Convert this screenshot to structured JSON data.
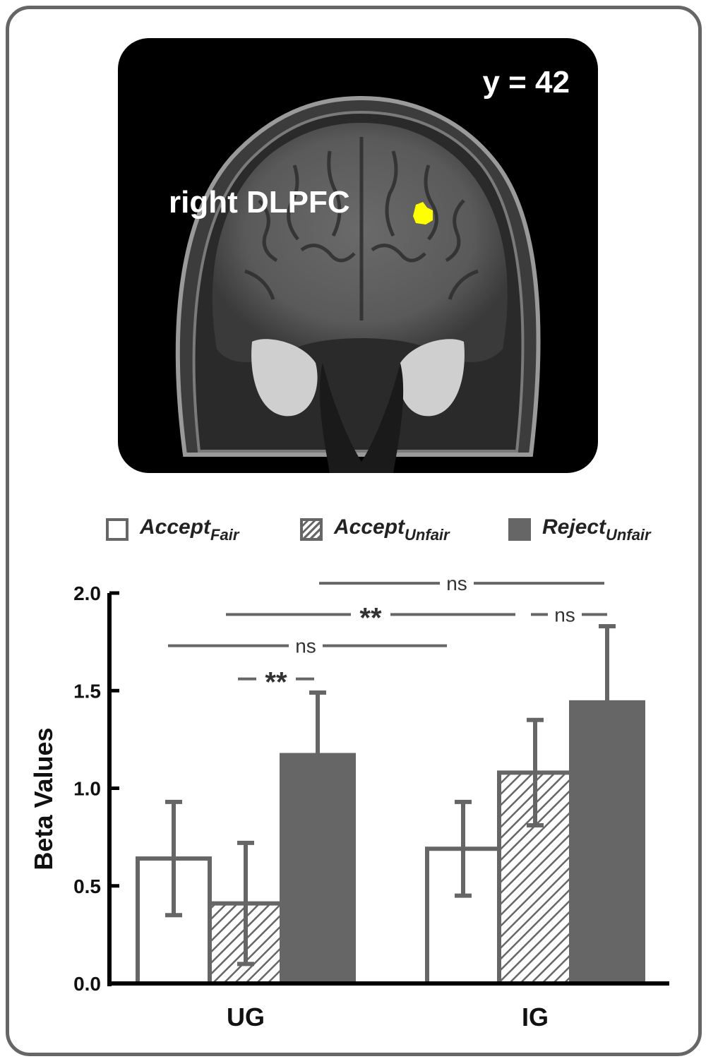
{
  "brain_image": {
    "slice_label": "y = 42",
    "region_label": "right DLPFC",
    "highlight_color": "#ffff00"
  },
  "legend": [
    {
      "main": "Accept",
      "sub": "Fair",
      "style": "open"
    },
    {
      "main": "Accept",
      "sub": "Unfair",
      "style": "hatched"
    },
    {
      "main": "Reject",
      "sub": "Unfair",
      "style": "filled"
    }
  ],
  "chart_data": {
    "type": "bar",
    "categories": [
      "UG",
      "IG"
    ],
    "series": [
      {
        "name": "AcceptFair",
        "values": [
          0.64,
          0.69
        ],
        "errors": [
          0.29,
          0.24
        ],
        "style": "open"
      },
      {
        "name": "AcceptUnfair",
        "values": [
          0.41,
          1.08
        ],
        "errors": [
          0.31,
          0.27
        ],
        "style": "hatched"
      },
      {
        "name": "RejectUnfair",
        "values": [
          1.17,
          1.44
        ],
        "errors": [
          0.32,
          0.39
        ],
        "style": "filled"
      }
    ],
    "ylabel": "Beta Values",
    "xlabel": "",
    "ylim": [
      0,
      2.0
    ],
    "yticks": [
      "0.0",
      "0.5",
      "1.0",
      "1.5",
      "2.0"
    ],
    "bar_color": "#666666",
    "significance": [
      {
        "label": "**",
        "y": 1.56
      },
      {
        "label": "ns",
        "y": 1.73
      },
      {
        "label": "**",
        "y": 1.89
      },
      {
        "label": "ns",
        "y": 1.89
      },
      {
        "label": "ns",
        "y": 2.05
      }
    ]
  }
}
